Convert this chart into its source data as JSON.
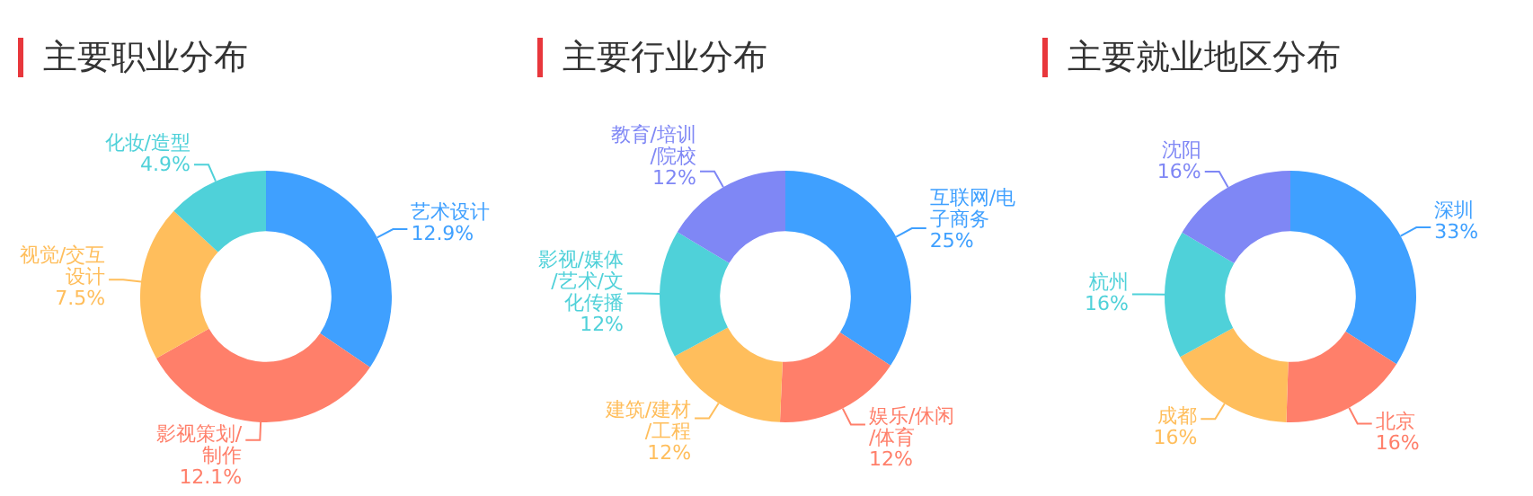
{
  "chart_data": [
    {
      "type": "donut",
      "title": "主要职业分布",
      "categories": [
        "艺术设计",
        "影视策划/制作",
        "视觉/交互设计",
        "化妆/造型"
      ],
      "values": [
        12.9,
        12.1,
        7.5,
        4.9
      ],
      "colors": [
        "#3fa0ff",
        "#ff7f6a",
        "#ffbe5c",
        "#4fd1d9"
      ],
      "value_labels": [
        "12.9%",
        "12.1%",
        "7.5%",
        "4.9%"
      ],
      "legend": false
    },
    {
      "type": "donut",
      "title": "主要行业分布",
      "categories": [
        "互联网/电子商务",
        "娱乐/休闲/体育",
        "建筑/建材/工程",
        "影视/媒体/艺术/文化传播",
        "教育/培训/院校"
      ],
      "values": [
        25,
        12,
        12,
        12,
        12
      ],
      "colors": [
        "#3fa0ff",
        "#ff7f6a",
        "#ffbe5c",
        "#4fd1d9",
        "#7f87f5"
      ],
      "value_labels": [
        "25%",
        "12%",
        "12%",
        "12%",
        "12%"
      ],
      "legend": false
    },
    {
      "type": "donut",
      "title": "主要就业地区分布",
      "categories": [
        "深圳",
        "北京",
        "成都",
        "杭州",
        "沈阳"
      ],
      "values": [
        33,
        16,
        16,
        16,
        16
      ],
      "colors": [
        "#3fa0ff",
        "#ff7f6a",
        "#ffbe5c",
        "#4fd1d9",
        "#7f87f5"
      ],
      "value_labels": [
        "33%",
        "16%",
        "16%",
        "16%",
        "16%"
      ],
      "legend": false
    }
  ]
}
